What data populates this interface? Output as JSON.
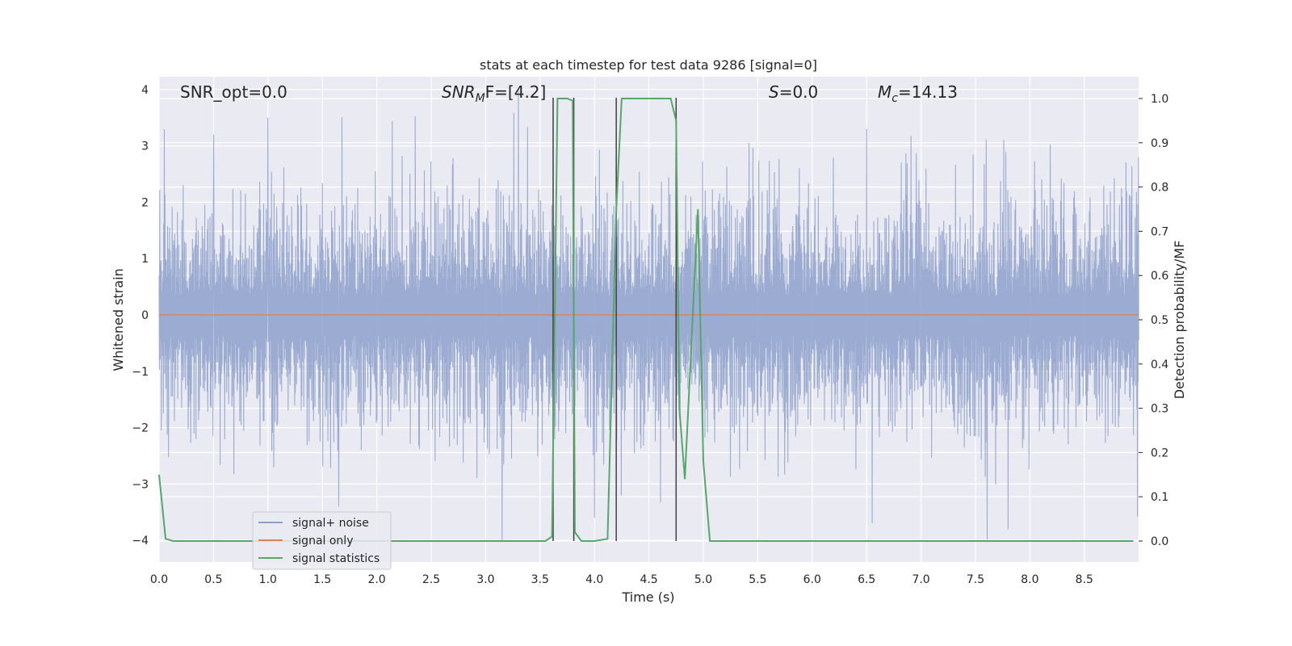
{
  "chart_data": {
    "type": "line",
    "title": "stats at each timestep for test data 9286 [signal=0]",
    "xlabel": "Time (s)",
    "ylabel_left": "Whitened strain",
    "ylabel_right": "Detection probability/MF",
    "xlim": [
      0.0,
      9.0
    ],
    "ylim_left": [
      -4.4,
      4.2
    ],
    "ylim_right": [
      -0.05,
      1.035
    ],
    "x_ticks": [
      "0.0",
      "0.5",
      "1.0",
      "1.5",
      "2.0",
      "2.5",
      "3.0",
      "3.5",
      "4.0",
      "4.5",
      "5.0",
      "5.5",
      "6.0",
      "6.5",
      "7.0",
      "7.5",
      "8.0",
      "8.5"
    ],
    "y_ticks_left": [
      "4",
      "3",
      "2",
      "1",
      "0",
      "−1",
      "−2",
      "−3",
      "−4"
    ],
    "y_ticks_right": [
      "1.0",
      "0.9",
      "0.8",
      "0.7",
      "0.6",
      "0.5",
      "0.4",
      "0.3",
      "0.2",
      "0.1",
      "0.0"
    ],
    "grid": true,
    "legend_position": "lower-left",
    "annotations": {
      "snr_opt": "SNR_opt=0.0",
      "snr_mf_main": "SNR",
      "snr_mf_sub": "M",
      "snr_mf_rest": "F=[4.2]",
      "s_main": "S",
      "s_rest": "=0.0",
      "mc_main": "M",
      "mc_sub": "c",
      "mc_rest": "=14.13"
    },
    "series": [
      {
        "name": "signal+ noise",
        "color": "#8da0cb",
        "kind": "noise",
        "amplitude_typical": 1.5,
        "amplitude_peak_max": 4.0,
        "peaks": [
          {
            "x": 0.5,
            "y": 3.2
          },
          {
            "x": 1.0,
            "y": 3.5
          },
          {
            "x": 3.3,
            "y": 4.0
          },
          {
            "x": 6.5,
            "y": 3.3
          },
          {
            "x": 3.15,
            "y": -4.0
          },
          {
            "x": 6.55,
            "y": -3.7
          },
          {
            "x": 7.8,
            "y": -3.8
          },
          {
            "x": 1.65,
            "y": -3.4
          },
          {
            "x": 4.0,
            "y": -3.6
          }
        ]
      },
      {
        "name": "signal only",
        "color": "#dd8452",
        "kind": "constant",
        "y": 0.0
      },
      {
        "name": "signal statistics",
        "color": "#55a868",
        "kind": "line",
        "axis": "right",
        "x": [
          0.0,
          0.06,
          0.13,
          3.55,
          3.61,
          3.66,
          3.75,
          3.8,
          3.82,
          3.88,
          3.95,
          4.0,
          4.12,
          4.2,
          4.25,
          4.7,
          4.75,
          4.78,
          4.83,
          4.95,
          5.0,
          5.06,
          5.5,
          8.95
        ],
        "y": [
          0.15,
          0.005,
          0.0,
          0.0,
          0.01,
          1.0,
          1.0,
          0.995,
          0.02,
          0.0,
          0.0,
          0.0,
          0.005,
          0.75,
          1.0,
          1.0,
          0.95,
          0.3,
          0.14,
          0.75,
          0.18,
          0.0,
          0.0,
          0.0
        ]
      }
    ],
    "vertical_markers": {
      "color": "#404040",
      "x": [
        3.62,
        3.81,
        4.2,
        4.75
      ]
    }
  }
}
